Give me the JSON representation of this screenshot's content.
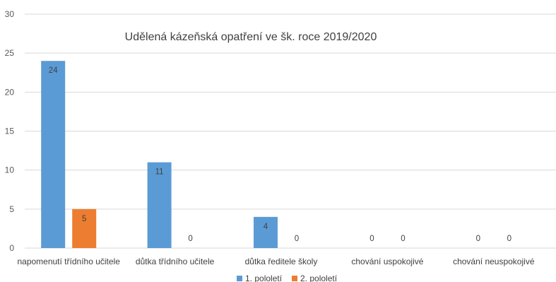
{
  "chart_data": {
    "type": "bar",
    "title": "Udělená kázeňská opatření ve šk. roce 2019/2020",
    "categories": [
      "napomenutí třídního učitele",
      "důtka třídního učitele",
      "důtka ředitele školy",
      "chování uspokojivé",
      "chování neuspokojivé"
    ],
    "series": [
      {
        "name": "1. pololetí",
        "color": "#5B9BD5",
        "values": [
          24,
          11,
          4,
          0,
          0
        ]
      },
      {
        "name": "2. pololetí",
        "color": "#ED7D31",
        "values": [
          5,
          0,
          0,
          0,
          0
        ]
      }
    ],
    "y_ticks": [
      "0",
      "5",
      "10",
      "15",
      "20",
      "25",
      "30"
    ],
    "ylim": [
      0,
      30
    ],
    "grid": true,
    "legend_position": "bottom"
  }
}
